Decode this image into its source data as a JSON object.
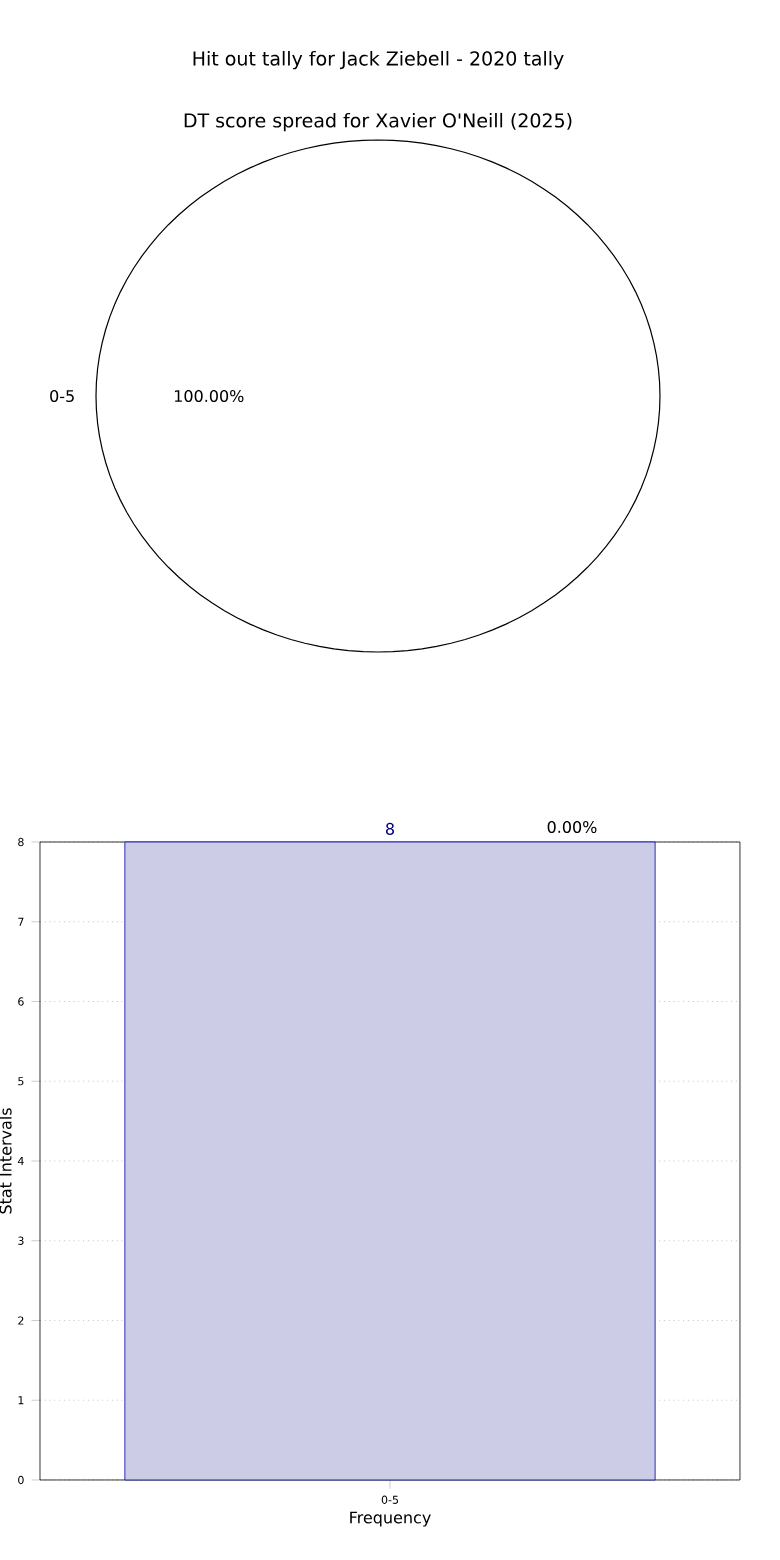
{
  "chart_data": [
    {
      "type": "pie",
      "title": "Hit out tally for Jack Ziebell - 2020 tally",
      "subtitle": "DT score spread for Xavier O'Neill (2025)",
      "categories": [
        "0-5"
      ],
      "values": [
        100
      ],
      "colors": [
        "#ffffff"
      ],
      "value_labels": [
        "100.00%"
      ]
    },
    {
      "type": "bar",
      "categories": [
        "0-5"
      ],
      "values": [
        8
      ],
      "color": "#ccccE6",
      "ylim": [
        0,
        8
      ],
      "yticks": [
        0,
        1,
        2,
        3,
        4,
        5,
        6,
        7,
        8
      ],
      "grid": true,
      "xlabel": "Frequency",
      "ylabel": "Stat Intervals",
      "data_labels": true,
      "annotations": [
        "0.00%"
      ]
    }
  ]
}
